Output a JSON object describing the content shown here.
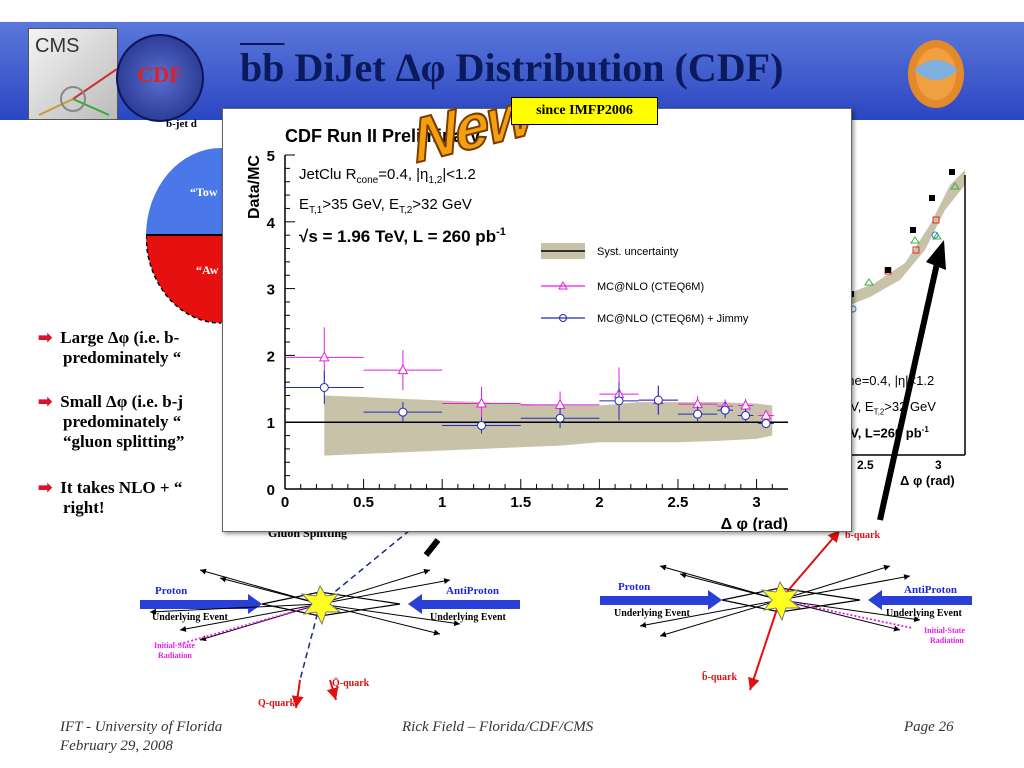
{
  "slide": {
    "title_prefix": "bb",
    "title_rest": " DiJet Δφ Distribution (CDF)",
    "new_badge": "New",
    "since_label": "since IMFP2006",
    "logo_cms": "CMS",
    "logo_cdf": "CDF",
    "bjet_label": "b-jet d",
    "toward_label": "“Tow",
    "away_label": "“Aw",
    "bullets": [
      {
        "text": "Large Δφ (i.e. b-",
        "line2": "predominately “"
      },
      {
        "text": "Small Δφ (i.e. b-j",
        "line2": "predominately “",
        "line3": "“gluon splitting”"
      },
      {
        "text": "It takes NLO + “",
        "line2": "right!"
      }
    ],
    "footer_left_1": "IFT - University of Florida",
    "footer_left_2": "February 29, 2008",
    "footer_center": "Rick Field – Florida/CDF/CMS",
    "footer_right": "Page 26"
  },
  "diagrams": {
    "gluon_splitting": "Gluon Splitting",
    "left": {
      "proton": "Proton",
      "antiproton": "AntiProton",
      "ue_left": "Underlying Event",
      "ue_right": "Underlying Event",
      "isr": "Initial-State",
      "isr2": "Radiation",
      "qquark": "Q-quark",
      "qbar": "Q̄-quark"
    },
    "right": {
      "proton": "Proton",
      "antiproton": "AntiProton",
      "ue_left": "Underlying Event",
      "ue_right": "Underlying Event",
      "isr": "Initial-State",
      "isr2": "Radiation",
      "bquark": "b-quark",
      "bbar": "b̄-quark"
    }
  },
  "background_plot": {
    "ticks": [
      "2.5",
      "3"
    ],
    "xlabel": "Δ φ (rad)",
    "text1": "one=0.4, |η|<1.2",
    "text2": "eV, E",
    "text2b": "T,2",
    "text2c": ">32 GeV",
    "text3": "eV, L=260 pb",
    "text3sup": "-1"
  },
  "chart_data": {
    "type": "scatter",
    "title": "CDF Run II Preliminary",
    "xlabel": "Δ φ (rad)",
    "ylabel": "Data/MC",
    "xlim": [
      0,
      3.2
    ],
    "ylim": [
      0,
      5
    ],
    "xticks": [
      "0",
      "0.5",
      "1",
      "1.5",
      "2",
      "2.5",
      "3"
    ],
    "yticks": [
      "0",
      "1",
      "2",
      "3",
      "4",
      "5"
    ],
    "annotations": {
      "line1": "JetClu R",
      "line1_sub": "cone",
      "line1_rest": "=0.4, |η",
      "line1_sub2": "1,2",
      "line1_end": "|<1.2",
      "line2a": "E",
      "line2a_sub": "T,1",
      "line2b": ">35 GeV, E",
      "line2b_sub": "T,2",
      "line2c": ">32 GeV",
      "line3": "√s = 1.96 TeV, L = 260 pb",
      "line3_sup": "-1"
    },
    "legend": [
      "Syst. uncertainty",
      "MC@NLO (CTEQ6M)",
      "MC@NLO (CTEQ6M) + Jimmy"
    ],
    "legend_position": "top-right",
    "reference_line": 1,
    "band": {
      "x": [
        0.25,
        0.75,
        1.25,
        1.75,
        2.0,
        2.25,
        2.5,
        2.75,
        3.0,
        3.1
      ],
      "low": [
        0.5,
        0.55,
        0.6,
        0.65,
        0.7,
        0.7,
        0.7,
        0.72,
        0.75,
        0.8
      ],
      "high": [
        1.4,
        1.35,
        1.3,
        1.25,
        1.25,
        1.3,
        1.3,
        1.3,
        1.28,
        1.25
      ]
    },
    "series": [
      {
        "name": "MC@NLO (CTEQ6M)",
        "color": "#e61ee6",
        "marker": "triangle",
        "points": [
          {
            "x": 0.25,
            "y": 1.97,
            "xerr": 0.25,
            "yerr": 0.45
          },
          {
            "x": 0.75,
            "y": 1.78,
            "xerr": 0.25,
            "yerr": 0.3
          },
          {
            "x": 1.25,
            "y": 1.28,
            "xerr": 0.25,
            "yerr": 0.25
          },
          {
            "x": 1.75,
            "y": 1.26,
            "xerr": 0.25,
            "yerr": 0.2
          },
          {
            "x": 2.125,
            "y": 1.42,
            "xerr": 0.125,
            "yerr": 0.4
          },
          {
            "x": 2.375,
            "y": 1.33,
            "xerr": 0.125,
            "yerr": 0.2
          },
          {
            "x": 2.625,
            "y": 1.27,
            "xerr": 0.125,
            "yerr": 0.12
          },
          {
            "x": 2.8,
            "y": 1.24,
            "xerr": 0.05,
            "yerr": 0.1
          },
          {
            "x": 2.93,
            "y": 1.25,
            "xerr": 0.05,
            "yerr": 0.1
          },
          {
            "x": 3.06,
            "y": 1.1,
            "xerr": 0.05,
            "yerr": 0.08
          }
        ]
      },
      {
        "name": "MC@NLO (CTEQ6M) + Jimmy",
        "color": "#1e2eb8",
        "marker": "circle",
        "points": [
          {
            "x": 0.25,
            "y": 1.52,
            "xerr": 0.25,
            "yerr": 0.25
          },
          {
            "x": 0.75,
            "y": 1.15,
            "xerr": 0.25,
            "yerr": 0.15
          },
          {
            "x": 1.25,
            "y": 0.95,
            "xerr": 0.25,
            "yerr": 0.12
          },
          {
            "x": 1.75,
            "y": 1.06,
            "xerr": 0.25,
            "yerr": 0.15
          },
          {
            "x": 2.125,
            "y": 1.32,
            "xerr": 0.125,
            "yerr": 0.28
          },
          {
            "x": 2.375,
            "y": 1.33,
            "xerr": 0.125,
            "yerr": 0.22
          },
          {
            "x": 2.625,
            "y": 1.12,
            "xerr": 0.125,
            "yerr": 0.12
          },
          {
            "x": 2.8,
            "y": 1.18,
            "xerr": 0.05,
            "yerr": 0.12
          },
          {
            "x": 2.93,
            "y": 1.1,
            "xerr": 0.05,
            "yerr": 0.1
          },
          {
            "x": 3.06,
            "y": 0.98,
            "xerr": 0.05,
            "yerr": 0.06
          }
        ]
      }
    ]
  }
}
